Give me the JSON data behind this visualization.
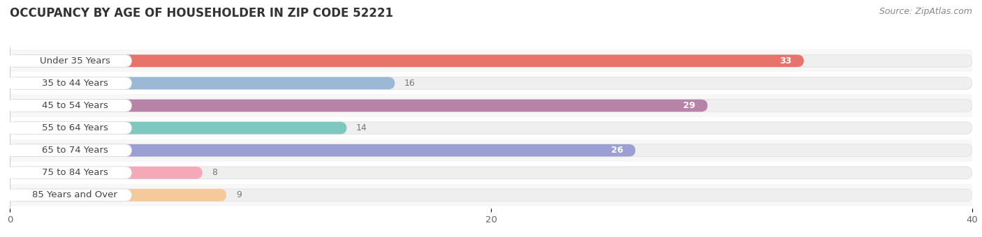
{
  "title": "OCCUPANCY BY AGE OF HOUSEHOLDER IN ZIP CODE 52221",
  "source": "Source: ZipAtlas.com",
  "categories": [
    "Under 35 Years",
    "35 to 44 Years",
    "45 to 54 Years",
    "55 to 64 Years",
    "65 to 74 Years",
    "75 to 84 Years",
    "85 Years and Over"
  ],
  "values": [
    33,
    16,
    29,
    14,
    26,
    8,
    9
  ],
  "bar_colors": [
    "#E8736A",
    "#9BB8D4",
    "#B784A7",
    "#7EC8C0",
    "#9B9FD4",
    "#F4A8B8",
    "#F5C99A"
  ],
  "track_color": "#EFEFEF",
  "track_edge_color": "#E0E0E0",
  "background_color": "#FFFFFF",
  "row_sep_color": "#E8E8E8",
  "xlim": [
    0,
    40
  ],
  "xticks": [
    0,
    20,
    40
  ],
  "bar_height": 0.55,
  "title_fontsize": 12,
  "label_fontsize": 9.5,
  "value_fontsize": 9,
  "source_fontsize": 9,
  "label_pill_color": "#FFFFFF",
  "label_text_color": "#444444",
  "value_color_inside": "#FFFFFF",
  "value_color_outside": "#777777"
}
